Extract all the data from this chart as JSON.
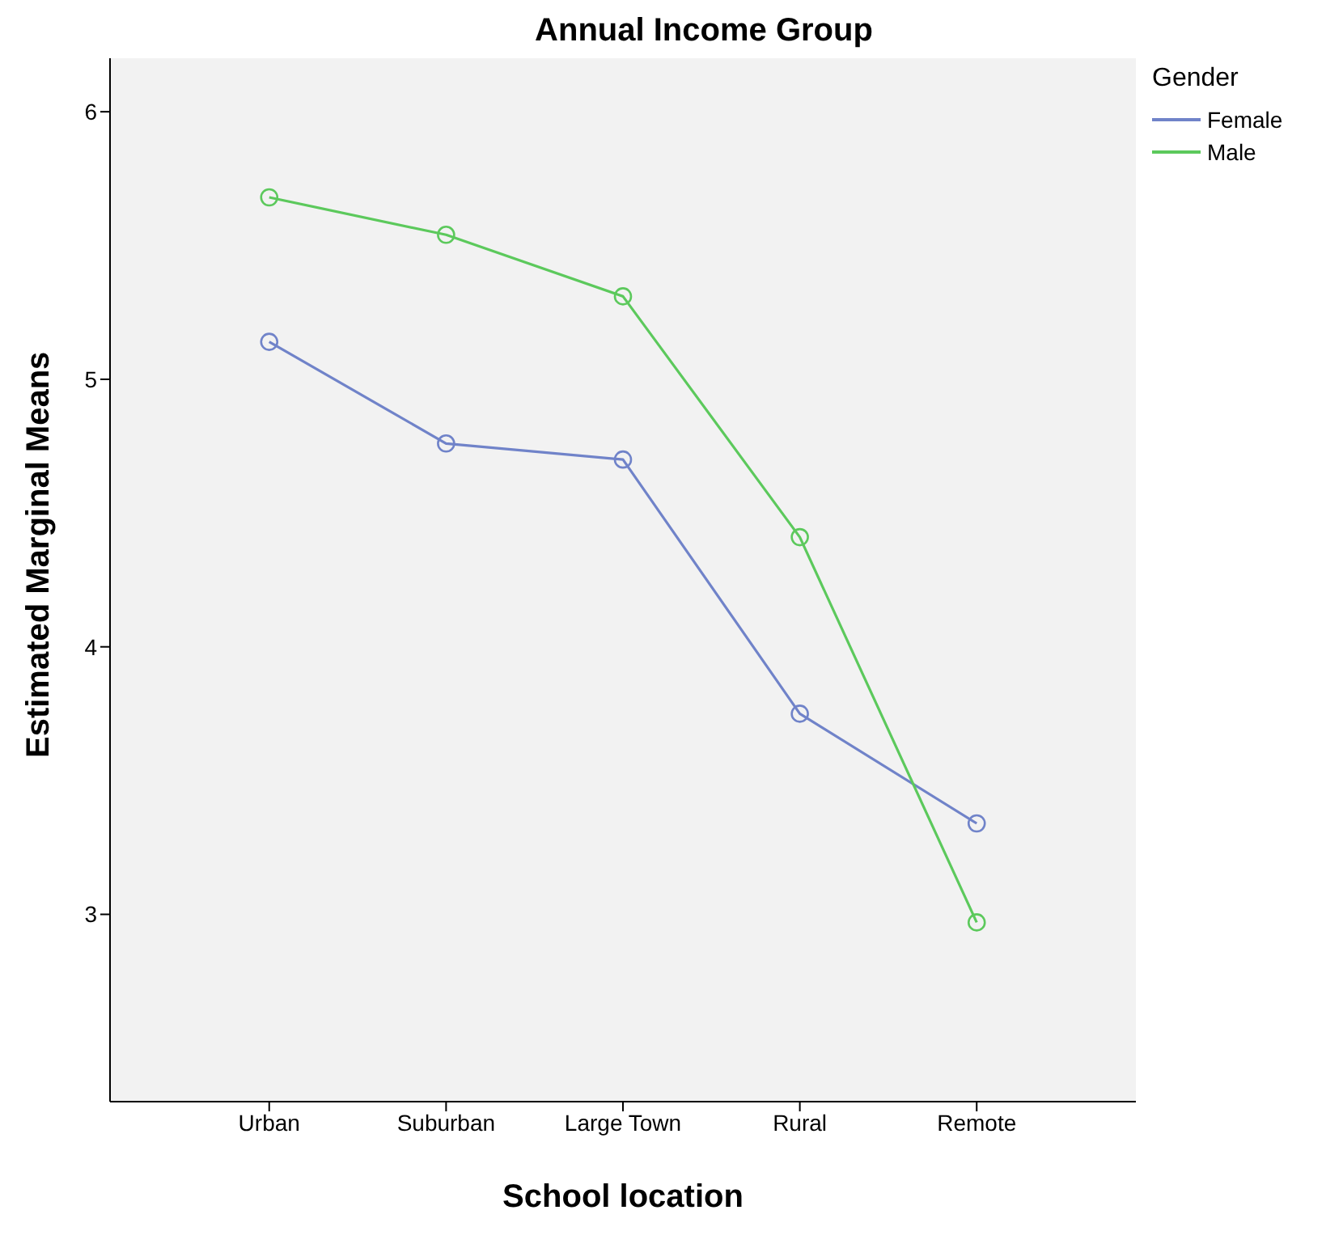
{
  "chart_data": {
    "type": "line",
    "title": "Annual Income Group",
    "xlabel": "School location",
    "ylabel": "Estimated Marginal Means",
    "legend_title": "Gender",
    "categories": [
      "Urban",
      "Suburban",
      "Large Town",
      "Rural",
      "Remote"
    ],
    "series": [
      {
        "name": "Female",
        "color": "#7083c9",
        "values": [
          5.14,
          4.76,
          4.7,
          3.75,
          3.34
        ]
      },
      {
        "name": "Male",
        "color": "#5cc95c",
        "values": [
          5.68,
          5.54,
          5.31,
          4.41,
          2.97
        ]
      }
    ],
    "ylim": [
      2.3,
      6.2
    ],
    "yticks": [
      3,
      4,
      5,
      6
    ],
    "grid": false,
    "legend": "top right",
    "marker": "circle",
    "line_style": "solid"
  }
}
